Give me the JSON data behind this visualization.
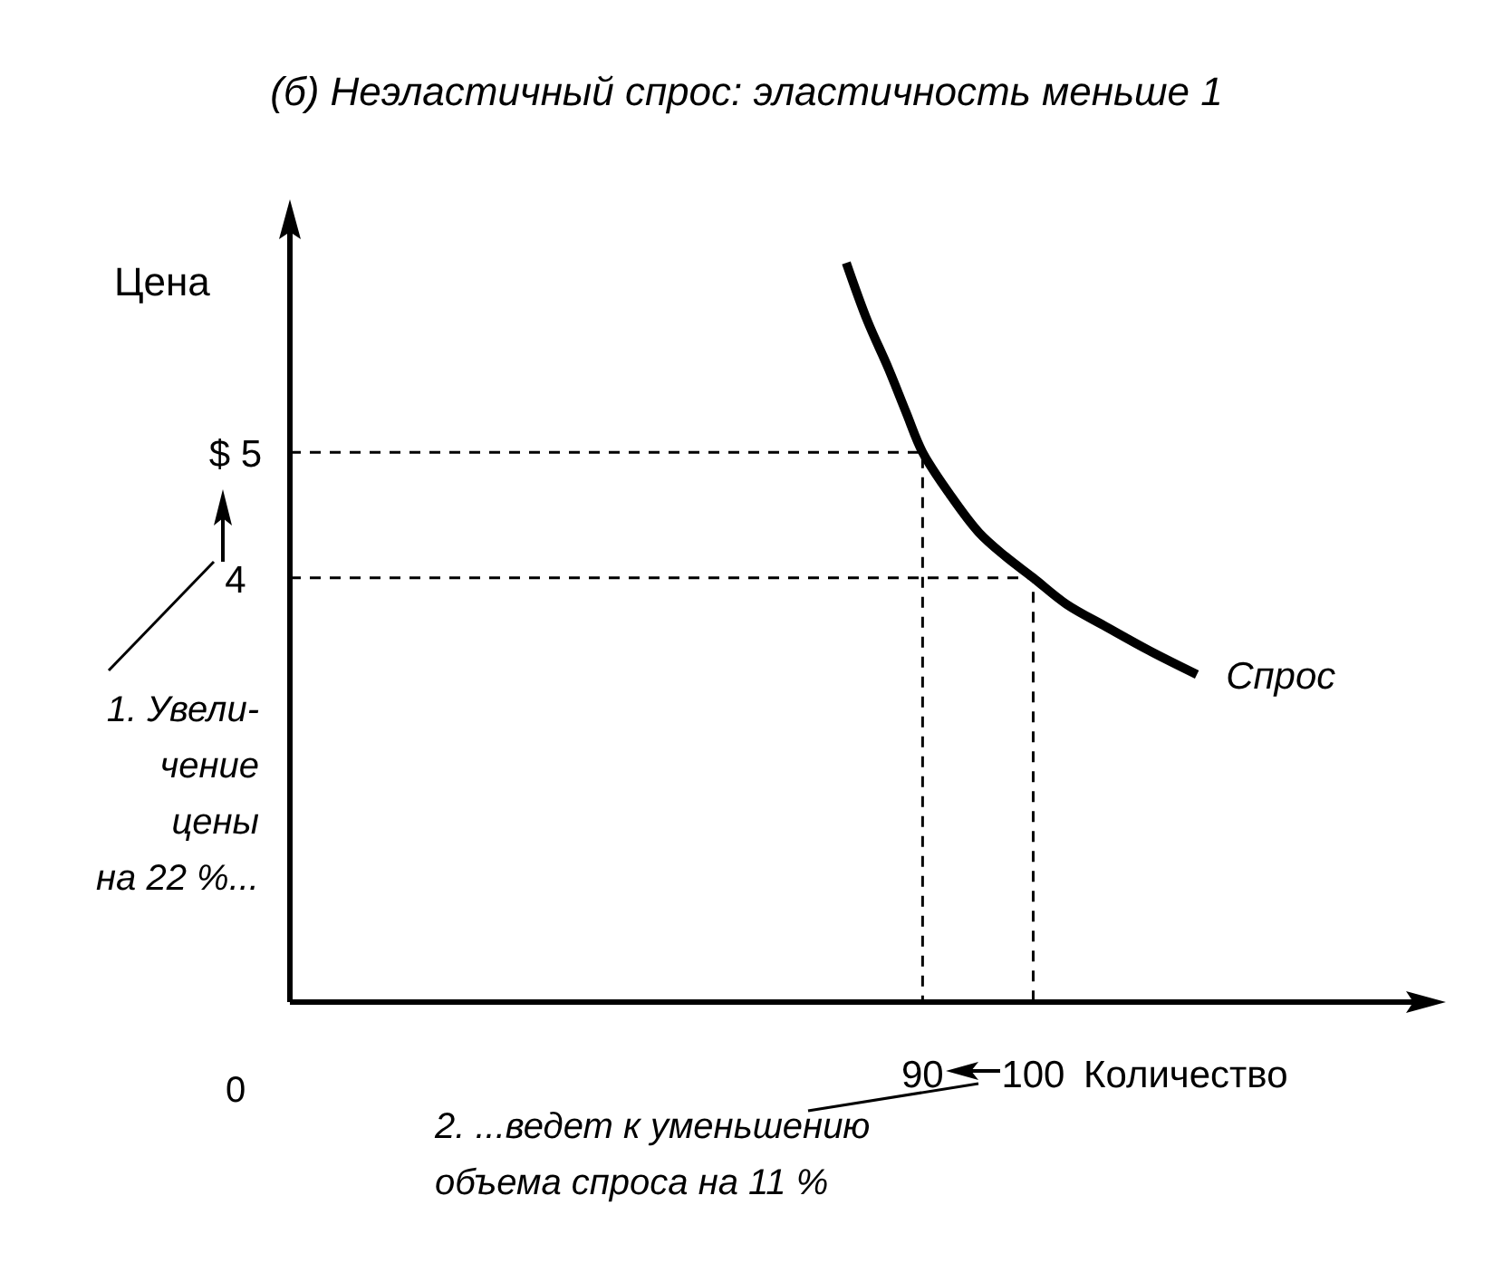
{
  "chart_data": {
    "type": "line",
    "title": "(б) Неэластичный спрос: эластичность меньше 1",
    "xlabel": "Количество",
    "ylabel": "Цена",
    "xlim": [
      32.8,
      136
    ],
    "ylim": [
      0.62,
      6.9
    ],
    "xticks": [
      90,
      100
    ],
    "yticks": [
      {
        "value": 5,
        "label": "$ 5"
      },
      4
    ],
    "series": [
      {
        "name": "Спрос",
        "color": "#000000",
        "line_style": "solid",
        "x": [
          83.1,
          85,
          86.9,
          88.5,
          90,
          92.5,
          95.1,
          97.5,
          100,
          103,
          106.6,
          110.5,
          114.8
        ],
        "values": [
          6.51,
          6.05,
          5.67,
          5.32,
          5,
          4.66,
          4.36,
          4.17,
          4,
          3.79,
          3.61,
          3.42,
          3.23
        ]
      },
      {
        "color": "#000000",
        "line_style": "dashed",
        "x": [
          32.8,
          90,
          90
        ],
        "values": [
          5,
          5,
          0.62
        ]
      },
      {
        "color": "#000000",
        "line_style": "dashed",
        "x": [
          32.8,
          100,
          100
        ],
        "values": [
          4,
          4,
          0.62
        ]
      }
    ],
    "annotations": [
      "0",
      "1. Увели-\nчение\nцены\nна 22 %...",
      "2. ...ведет к уменьшению\nобъема спроса на 11 %"
    ],
    "grid": false,
    "legend": false,
    "marker": "none"
  }
}
